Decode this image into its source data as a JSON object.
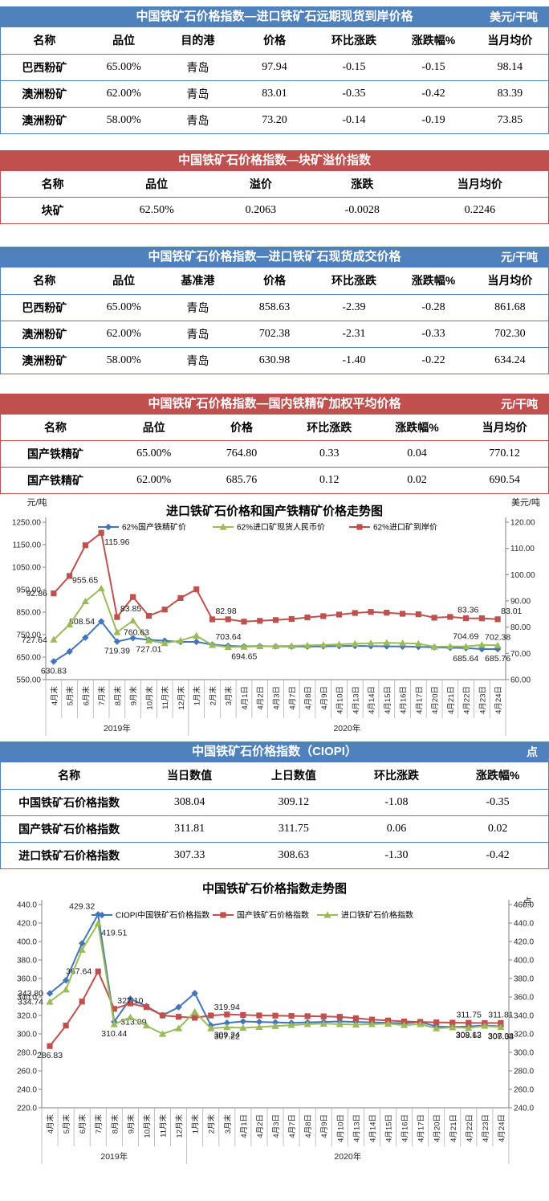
{
  "tables": [
    {
      "theme": "blue",
      "title": "中国铁矿石价格指数—进口铁矿石远期现货到岸价格",
      "unit": "美元/干吨",
      "headers": [
        "名称",
        "品位",
        "目的港",
        "价格",
        "环比涨跌",
        "涨跌幅%",
        "当月均价"
      ],
      "rows": [
        [
          "巴西粉矿",
          "65.00%",
          "青岛",
          "97.94",
          "-0.15",
          "-0.15",
          "98.14"
        ],
        [
          "澳洲粉矿",
          "62.00%",
          "青岛",
          "83.01",
          "-0.35",
          "-0.42",
          "83.39"
        ],
        [
          "澳洲粉矿",
          "58.00%",
          "青岛",
          "73.20",
          "-0.14",
          "-0.19",
          "73.85"
        ]
      ]
    },
    {
      "theme": "red",
      "title": "中国铁矿石价格指数—块矿溢价指数",
      "unit": "",
      "headers": [
        "名称",
        "品位",
        "溢价",
        "涨跌",
        "当月均价"
      ],
      "rows": [
        [
          "块矿",
          "62.50%",
          "0.2063",
          "-0.0028",
          "0.2246"
        ]
      ]
    },
    {
      "theme": "blue",
      "title": "中国铁矿石价格指数—进口铁矿石现货成交价格",
      "unit": "元/干吨",
      "headers": [
        "名称",
        "品位",
        "基准港",
        "价格",
        "环比涨跌",
        "涨跌幅%",
        "当月均价"
      ],
      "rows": [
        [
          "巴西粉矿",
          "65.00%",
          "青岛",
          "858.63",
          "-2.39",
          "-0.28",
          "861.68"
        ],
        [
          "澳洲粉矿",
          "62.00%",
          "青岛",
          "702.38",
          "-2.31",
          "-0.33",
          "702.30"
        ],
        [
          "澳洲粉矿",
          "58.00%",
          "青岛",
          "630.98",
          "-1.40",
          "-0.22",
          "634.24"
        ]
      ]
    },
    {
      "theme": "red",
      "title": "中国铁矿石价格指数—国内铁精矿加权平均价格",
      "unit": "元/干吨",
      "headers": [
        "名称",
        "品位",
        "价格",
        "环比涨跌",
        "涨跌幅%",
        "当月均价"
      ],
      "rows": [
        [
          "国产铁精矿",
          "65.00%",
          "764.80",
          "0.33",
          "0.04",
          "770.12"
        ],
        [
          "国产铁精矿",
          "62.00%",
          "685.76",
          "0.12",
          "0.02",
          "690.54"
        ]
      ]
    },
    {
      "theme": "blue",
      "title": "中国铁矿石价格指数（CIOPI）",
      "unit": "点",
      "headers": [
        "名称",
        "当日数值",
        "上日数值",
        "环比涨跌",
        "涨跌幅%"
      ],
      "rows": [
        [
          "中国铁矿石价格指数",
          "308.04",
          "309.12",
          "-1.08",
          "-0.35"
        ],
        [
          "国产铁矿石价格指数",
          "311.81",
          "311.75",
          "0.06",
          "0.02"
        ],
        [
          "进口铁矿石价格指数",
          "307.33",
          "308.63",
          "-1.30",
          "-0.42"
        ]
      ]
    }
  ],
  "chart_data": [
    {
      "type": "line",
      "title": "进口铁矿石价格和国产铁精矿价格走势图",
      "left_axis": {
        "label": "元/吨",
        "min": 550,
        "max": 1250,
        "step": 100,
        "decimals": 2
      },
      "right_axis": {
        "label": "美元/吨",
        "min": 60,
        "max": 120,
        "step": 10,
        "decimals": 2
      },
      "grid": false,
      "legend_position": "top",
      "categories": [
        "4月末",
        "5月末",
        "6月末",
        "7月末",
        "8月末",
        "9月末",
        "10月末",
        "11月末",
        "12月末",
        "1月末",
        "2月末",
        "3月末",
        "4月1日",
        "4月2日",
        "4月3日",
        "4月7日",
        "4月8日",
        "4月9日",
        "4月10日",
        "4月13日",
        "4月14日",
        "4月15日",
        "4月16日",
        "4月17日",
        "4月20日",
        "4月21日",
        "4月22日",
        "4月23日",
        "4月24日"
      ],
      "year_groups": [
        {
          "label": "2019年",
          "count": 9
        },
        {
          "label": "2020年",
          "count": 20
        }
      ],
      "series": [
        {
          "name": "62%国产铁精矿价",
          "color": "#4376b8",
          "marker": "diamond",
          "axis": "left",
          "values": [
            630.83,
            675,
            737,
            808.54,
            719.39,
            735,
            727.01,
            723,
            718,
            718,
            706,
            700,
            698,
            699,
            698,
            697,
            697,
            698,
            699,
            700,
            699,
            698,
            697,
            696,
            694,
            692,
            690,
            685.64,
            685.76
          ],
          "point_labels": [
            {
              "i": 0,
              "text": "630.83",
              "pos": "below"
            },
            {
              "i": 3,
              "text": "808.54",
              "pos": "left"
            },
            {
              "i": 4,
              "text": "719.39",
              "pos": "below"
            },
            {
              "i": 6,
              "text": "727.01",
              "pos": "below"
            },
            {
              "i": 27,
              "text": "685.64",
              "pos": "below-left"
            },
            {
              "i": 28,
              "text": "685.76",
              "pos": "below"
            }
          ]
        },
        {
          "name": "62%进口矿现货人民币价",
          "color": "#9bbb59",
          "marker": "triangle",
          "axis": "left",
          "values": [
            727.64,
            795,
            898,
            955.65,
            760.63,
            812,
            724,
            712,
            724,
            745,
            703.64,
            694.65,
            696,
            698,
            699,
            700,
            702,
            704,
            707,
            710,
            712,
            714,
            712,
            710,
            696,
            698,
            697,
            704.69,
            702.38
          ],
          "point_labels": [
            {
              "i": 0,
              "text": "727.64",
              "pos": "left"
            },
            {
              "i": 3,
              "text": "955.65",
              "pos": "above-left"
            },
            {
              "i": 4,
              "text": "760.63",
              "pos": "right"
            },
            {
              "i": 10,
              "text": "703.64",
              "pos": "above-right"
            },
            {
              "i": 11,
              "text": "694.65",
              "pos": "below-right"
            },
            {
              "i": 27,
              "text": "704.69",
              "pos": "above-left"
            },
            {
              "i": 28,
              "text": "702.38",
              "pos": "above"
            }
          ]
        },
        {
          "name": "62%进口矿到岸价",
          "color": "#c0504d",
          "marker": "square",
          "axis": "right",
          "values": [
            92.86,
            99.5,
            111.2,
            115.96,
            83.85,
            91.5,
            84.3,
            86.7,
            91.1,
            94.4,
            82.98,
            83.0,
            82.1,
            82.4,
            82.7,
            83.1,
            83.7,
            84.2,
            84.8,
            85.4,
            85.8,
            85.5,
            85.1,
            84.9,
            83.6,
            83.9,
            83.4,
            83.36,
            83.01
          ],
          "point_labels": [
            {
              "i": 0,
              "text": "92.86",
              "pos": "left"
            },
            {
              "i": 3,
              "text": "115.96",
              "pos": "below-right"
            },
            {
              "i": 4,
              "text": "83.85",
              "pos": "above-right"
            },
            {
              "i": 10,
              "text": "82.98",
              "pos": "above-right"
            },
            {
              "i": 27,
              "text": "83.36",
              "pos": "above-left"
            },
            {
              "i": 28,
              "text": "83.01",
              "pos": "above-right"
            }
          ]
        }
      ]
    },
    {
      "type": "line",
      "title": "中国铁矿石价格指数走势图",
      "left_axis": {
        "label": "",
        "min": 220,
        "max": 440,
        "step": 20,
        "decimals": 1
      },
      "right_axis": {
        "label": "点",
        "min": 240,
        "max": 460,
        "step": 20,
        "decimals": 1
      },
      "grid": false,
      "legend_position": "top",
      "categories": [
        "4月末",
        "5月末",
        "6月末",
        "7月末",
        "8月末",
        "9月末",
        "10月末",
        "11月末",
        "12月末",
        "1月末",
        "2月末",
        "3月末",
        "4月1日",
        "4月2日",
        "4月3日",
        "4月7日",
        "4月8日",
        "4月9日",
        "4月10日",
        "4月13日",
        "4月14日",
        "4月15日",
        "4月16日",
        "4月17日",
        "4月20日",
        "4月21日",
        "4月22日",
        "4月23日",
        "4月24日"
      ],
      "year_groups": [
        {
          "label": "2019年",
          "count": 9
        },
        {
          "label": "2020年",
          "count": 20
        }
      ],
      "series": [
        {
          "name": "CIOPI中国铁矿石价格指数",
          "color": "#4376b8",
          "marker": "diamond",
          "axis": "left",
          "values": [
            343.8,
            358,
            398,
            429.32,
            313.09,
            338,
            330,
            320,
            329,
            344,
            309.24,
            312,
            313.5,
            313,
            312.5,
            312,
            312.5,
            313,
            313.5,
            313,
            312.5,
            312,
            311.5,
            313,
            308,
            307.5,
            308,
            309.12,
            308.04
          ],
          "point_labels": [
            {
              "i": 0,
              "text": "343.80",
              "pos": "left"
            },
            {
              "i": 3,
              "text": "429.32",
              "pos": "above-left"
            },
            {
              "i": 4,
              "text": "313.09",
              "pos": "right"
            },
            {
              "i": 10,
              "text": "309.24",
              "pos": "below-right"
            },
            {
              "i": 27,
              "text": "309.12",
              "pos": "below-left"
            },
            {
              "i": 28,
              "text": "308.04",
              "pos": "below"
            }
          ]
        },
        {
          "name": "国产铁矿石价格指数",
          "color": "#c0504d",
          "marker": "square",
          "axis": "left",
          "values": [
            286.83,
            309,
            335,
            367.64,
            327.1,
            333,
            329,
            320,
            318.5,
            317.5,
            319.94,
            321,
            320.5,
            320,
            319.8,
            319.5,
            319.2,
            319,
            318.5,
            317,
            315.5,
            314.5,
            313.5,
            313,
            312.5,
            312.2,
            312,
            311.75,
            311.81
          ],
          "point_labels": [
            {
              "i": 0,
              "text": "286.83",
              "pos": "below"
            },
            {
              "i": 3,
              "text": "367.64",
              "pos": "left"
            },
            {
              "i": 4,
              "text": "327.10",
              "pos": "above-right"
            },
            {
              "i": 10,
              "text": "319.94",
              "pos": "above-right"
            },
            {
              "i": 27,
              "text": "311.75",
              "pos": "above-left"
            },
            {
              "i": 28,
              "text": "311.81",
              "pos": "above"
            }
          ]
        },
        {
          "name": "进口铁矿石价格指数",
          "color": "#9bbb59",
          "marker": "triangle",
          "axis": "left",
          "values": [
            334.74,
            348,
            391,
            419.51,
            310.44,
            318,
            309,
            300,
            306,
            324,
            306,
            307.22,
            306.5,
            307.5,
            308.5,
            309.5,
            310.5,
            311,
            310.5,
            310,
            310.5,
            311,
            309.5,
            310.5,
            306,
            307,
            306.5,
            308.63,
            307.33
          ],
          "point_labels": [
            {
              "i": 0,
              "text": "334.74",
              "pos": "left"
            },
            {
              "i": 3,
              "text": "419.51",
              "pos": "below-right"
            },
            {
              "i": 4,
              "text": "310.44",
              "pos": "below"
            },
            {
              "i": 11,
              "text": "307.22",
              "pos": "below"
            },
            {
              "i": 27,
              "text": "308.63",
              "pos": "below-left"
            },
            {
              "i": 28,
              "text": "307.33",
              "pos": "below"
            }
          ]
        }
      ]
    }
  ]
}
